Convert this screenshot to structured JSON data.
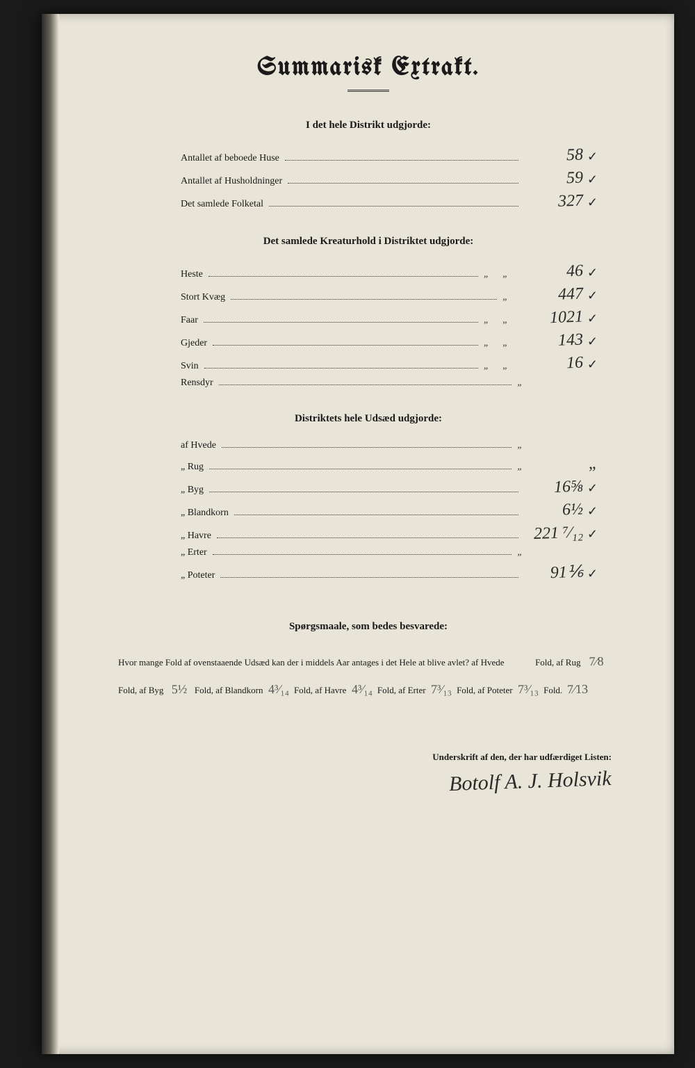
{
  "title": "Summarisk Extrakt.",
  "section1": {
    "header": "I det hele Distrikt udgjorde:",
    "rows": [
      {
        "label": "Antallet af beboede Huse",
        "value": "58",
        "checked": true
      },
      {
        "label": "Antallet af Husholdninger",
        "value": "59",
        "checked": true
      },
      {
        "label": "Det samlede Folketal",
        "value": "327",
        "checked": true
      }
    ]
  },
  "section2": {
    "header": "Det samlede Kreaturhold i Distriktet udgjorde:",
    "rows": [
      {
        "label": "Heste",
        "quotes": "„ „",
        "value": "46",
        "checked": true
      },
      {
        "label": "Stort Kvæg",
        "quotes": "„",
        "value": "447",
        "checked": true
      },
      {
        "label": "Faar",
        "quotes": "„ „",
        "value": "1021",
        "checked": true
      },
      {
        "label": "Gjeder",
        "quotes": "„ „",
        "value": "143",
        "checked": true
      },
      {
        "label": "Svin",
        "quotes": "„ „",
        "value": "16",
        "checked": true
      },
      {
        "label": "Rensdyr",
        "quotes": "„",
        "value": "",
        "checked": false
      }
    ]
  },
  "section3": {
    "header": "Distriktets hele Udsæd udgjorde:",
    "rows": [
      {
        "label": "af Hvede",
        "quotes": "„",
        "value": "",
        "checked": false
      },
      {
        "label": "„ Rug",
        "quotes": "„",
        "value": "„",
        "checked": false
      },
      {
        "label": "„ Byg",
        "quotes": "",
        "value": "16⅝",
        "checked": true
      },
      {
        "label": "„ Blandkorn",
        "quotes": "",
        "value": "6½",
        "checked": true
      },
      {
        "label": "„ Havre",
        "quotes": "",
        "value": "221 ⁷⁄₁₂",
        "checked": true
      },
      {
        "label": "„ Erter",
        "quotes": "„",
        "value": "",
        "checked": false
      },
      {
        "label": "„ Poteter",
        "quotes": "",
        "value": "91⅙",
        "checked": true
      }
    ]
  },
  "questions": {
    "header": "Spørgsmaale, som bedes besvarede:",
    "lead": "Hvor mange Fold af ovenstaaende Udsæd kan der i middels Aar antages i det Hele at blive avlet?  af Hvede",
    "hvede_val": "",
    "fold1": "Fold,",
    "rug_lbl": "af Rug",
    "rug_val": "7⁄8",
    "fold2": "Fold, af Byg",
    "byg_val": "5½",
    "fold3": "Fold, af Blandkorn",
    "blandkorn_val": "4³⁄₁₄",
    "fold4": "Fold, af Havre",
    "havre_val": "4³⁄₁₄",
    "fold5": "Fold, af Erter",
    "erter_val": "7³⁄₁₃",
    "fold6": "Fold,",
    "poteter_lbl": "af Poteter",
    "poteter_val": "7³⁄₁₃",
    "fold7": "Fold.",
    "extra_val": "7⁄13"
  },
  "signature": {
    "label": "Underskrift af den, der har udfærdiget Listen:",
    "name": "Botolf A. J. Holsvik"
  },
  "colors": {
    "paper": "#e8e4d8",
    "ink": "#1a1a1a",
    "hand_ink": "#2a2a2a",
    "background": "#1a1a1a"
  },
  "typography": {
    "title_fontsize": 36,
    "section_header_fontsize": 15,
    "row_label_fontsize": 14,
    "hand_value_fontsize": 24,
    "question_fontsize": 13,
    "signature_fontsize": 30
  }
}
